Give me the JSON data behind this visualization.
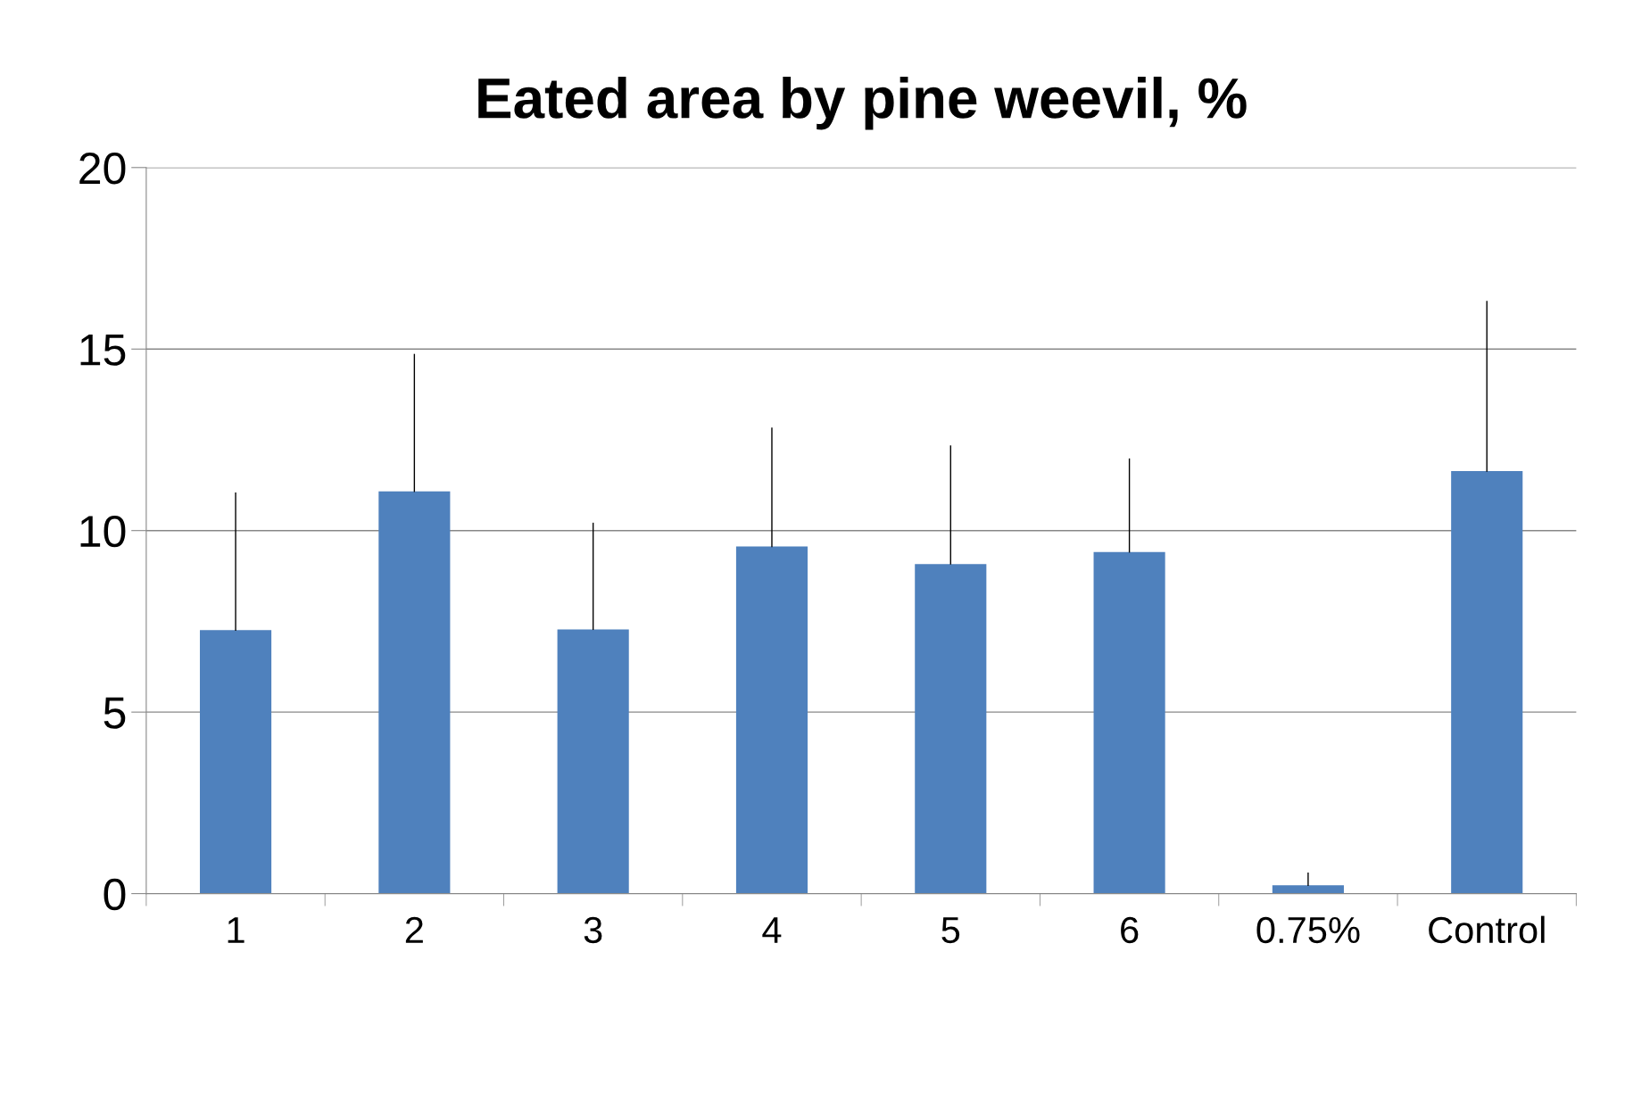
{
  "chart_data": {
    "type": "bar",
    "title": "Eated area by pine weevil, %",
    "categories": [
      "1",
      "2",
      "3",
      "4",
      "5",
      "6",
      "0.75%",
      "Control"
    ],
    "values": [
      7.26,
      11.08,
      7.28,
      9.56,
      9.08,
      9.41,
      0.23,
      11.64
    ],
    "errors": [
      [
        7.26,
        11.03
      ],
      [
        11.08,
        14.85
      ],
      [
        7.28,
        10.2
      ],
      [
        9.56,
        12.82
      ],
      [
        9.08,
        12.33
      ],
      [
        9.41,
        11.97
      ],
      [
        0.23,
        0.56
      ],
      [
        11.64,
        16.31
      ]
    ],
    "color": "#4f81bd",
    "ylim": [
      0,
      20
    ],
    "yticks": [
      0,
      5,
      10,
      15,
      20
    ],
    "grid": "y"
  }
}
